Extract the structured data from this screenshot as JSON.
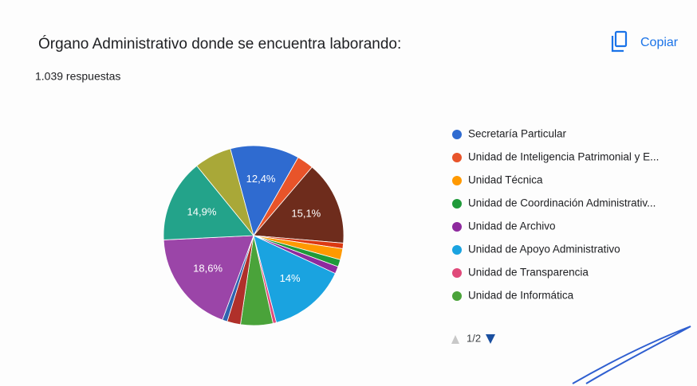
{
  "chart_data": {
    "type": "pie",
    "title": "Órgano Administrativo donde se encuentra laborando:",
    "subtitle": "1.039 respuestas",
    "action": "Copiar",
    "pager": "1/2",
    "categories": [
      "Secretaría Particular",
      "Unidad de Inteligencia Patrimonial y E...",
      null,
      null,
      "Unidad Técnica",
      "Unidad de Coordinación Administrativ...",
      "Unidad de Archivo",
      "Unidad de Apoyo Administrativo",
      "Unidad de Transparencia",
      "Unidad de Informática",
      null,
      null,
      null,
      null,
      null
    ],
    "values": [
      12.4,
      3.0,
      15.1,
      1.0,
      2.0,
      1.3,
      1.3,
      14,
      0.6,
      5.8,
      2.4,
      0.9,
      18.6,
      14.9,
      6.7
    ],
    "value_labels": [
      "12,4%",
      null,
      "15,1%",
      null,
      null,
      null,
      null,
      "14%",
      null,
      null,
      null,
      null,
      "18,6%",
      "14,9%",
      null
    ],
    "colors": [
      "#2f6bd0",
      "#e8542a",
      "#6e2c1c",
      "#dc3912",
      "#ff9900",
      "#1f9a3a",
      "#8e2a9e",
      "#1aa3e0",
      "#e04a7a",
      "#4aa33a",
      "#b0302a",
      "#2f63b0",
      "#9b45a8",
      "#23a38a",
      "#a9a838"
    ],
    "legend": "right"
  }
}
